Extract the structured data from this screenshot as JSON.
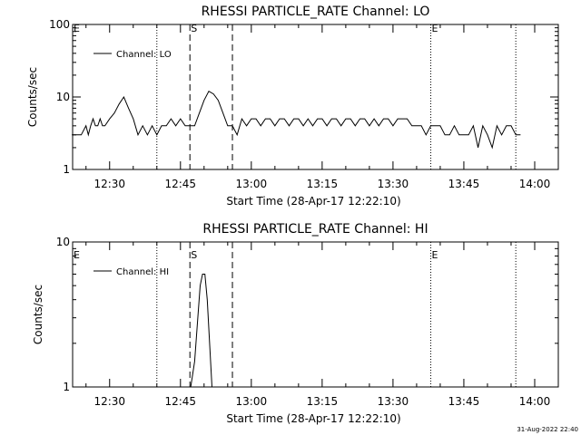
{
  "chart_data": [
    {
      "type": "line",
      "title": "RHESSI PARTICLE_RATE Channel: LO",
      "xlabel": "Start Time (28-Apr-17 12:22:10)",
      "ylabel": "Counts/sec",
      "yscale": "log",
      "ylim": [
        1,
        100
      ],
      "xlim": [
        "12:22:10",
        "14:05:00"
      ],
      "yticks": [
        "1",
        "10",
        "100"
      ],
      "xticks": [
        "12:30",
        "12:45",
        "13:00",
        "13:15",
        "13:30",
        "13:45",
        "14:00"
      ],
      "legend": {
        "position": "top-left"
      },
      "series": [
        {
          "name": "Channel: LO",
          "x": [
            "12:22",
            "12:24",
            "12:25",
            "12:25:30",
            "12:26",
            "12:26:30",
            "12:27",
            "12:27:30",
            "12:28",
            "12:28:30",
            "12:29",
            "12:30",
            "12:31",
            "12:32",
            "12:33",
            "12:34",
            "12:35",
            "12:36",
            "12:37",
            "12:38",
            "12:39",
            "12:40",
            "12:41",
            "12:42",
            "12:43",
            "12:44",
            "12:45",
            "12:46",
            "12:47",
            "12:48",
            "12:49",
            "12:50",
            "12:51",
            "12:52",
            "12:53",
            "12:54",
            "12:55",
            "12:56",
            "12:57",
            "12:58",
            "12:59",
            "13:00",
            "13:01",
            "13:02",
            "13:03",
            "13:04",
            "13:05",
            "13:06",
            "13:07",
            "13:08",
            "13:09",
            "13:10",
            "13:11",
            "13:12",
            "13:13",
            "13:14",
            "13:15",
            "13:16",
            "13:17",
            "13:18",
            "13:19",
            "13:20",
            "13:21",
            "13:22",
            "13:23",
            "13:24",
            "13:25",
            "13:26",
            "13:27",
            "13:28",
            "13:29",
            "13:30",
            "13:31",
            "13:32",
            "13:33",
            "13:34",
            "13:35",
            "13:36",
            "13:37",
            "13:38",
            "13:39",
            "13:40",
            "13:41",
            "13:42",
            "13:43",
            "13:44",
            "13:45",
            "13:46",
            "13:47",
            "13:48",
            "13:49",
            "13:50",
            "13:51",
            "13:52",
            "13:53",
            "13:54",
            "13:55",
            "13:56",
            "13:57"
          ],
          "values": [
            3,
            3,
            4,
            3,
            4,
            5,
            4,
            4,
            5,
            4,
            4,
            5,
            6,
            8,
            10,
            7,
            5,
            3,
            4,
            3,
            4,
            3,
            4,
            4,
            5,
            4,
            5,
            4,
            4,
            4,
            6,
            9,
            12,
            11,
            9,
            6,
            4,
            4,
            3,
            5,
            4,
            5,
            5,
            4,
            5,
            5,
            4,
            5,
            5,
            4,
            5,
            5,
            4,
            5,
            4,
            5,
            5,
            4,
            5,
            5,
            4,
            5,
            5,
            4,
            5,
            5,
            4,
            5,
            4,
            5,
            5,
            4,
            5,
            5,
            5,
            4,
            4,
            4,
            3,
            4,
            4,
            4,
            3,
            3,
            4,
            3,
            3,
            3,
            4,
            2,
            4,
            3,
            2,
            4,
            3,
            4,
            4,
            3,
            3
          ]
        }
      ],
      "annotations": {
        "solid_label": "E",
        "dashed_label": "S",
        "dotted_lines": [
          "12:40",
          "13:38",
          "13:56"
        ],
        "dashed_lines": [
          "12:47",
          "12:56"
        ]
      }
    },
    {
      "type": "line",
      "title": "RHESSI PARTICLE_RATE Channel: HI",
      "xlabel": "Start Time (28-Apr-17 12:22:10)",
      "ylabel": "Counts/sec",
      "yscale": "log",
      "ylim": [
        1,
        10
      ],
      "xlim": [
        "12:22:10",
        "14:05:00"
      ],
      "yticks": [
        "1",
        "10"
      ],
      "xticks": [
        "12:30",
        "12:45",
        "13:00",
        "13:15",
        "13:30",
        "13:45",
        "14:00"
      ],
      "legend": {
        "position": "top-left"
      },
      "series": [
        {
          "name": "Channel: HI",
          "x": [
            "12:47:10",
            "12:48",
            "12:48:40",
            "12:49:10",
            "12:49:40",
            "12:50:10",
            "12:50:40",
            "12:51:10",
            "12:51:40"
          ],
          "values": [
            1,
            1.5,
            3,
            5,
            6,
            6,
            4,
            2,
            1
          ]
        }
      ],
      "annotations": {
        "solid_label": "E",
        "dashed_label": "S",
        "dotted_lines": [
          "12:40",
          "13:38",
          "13:56"
        ],
        "dashed_lines": [
          "12:47",
          "12:56"
        ]
      }
    }
  ],
  "footer": {
    "timestamp": "31-Aug-2022 22:40"
  }
}
